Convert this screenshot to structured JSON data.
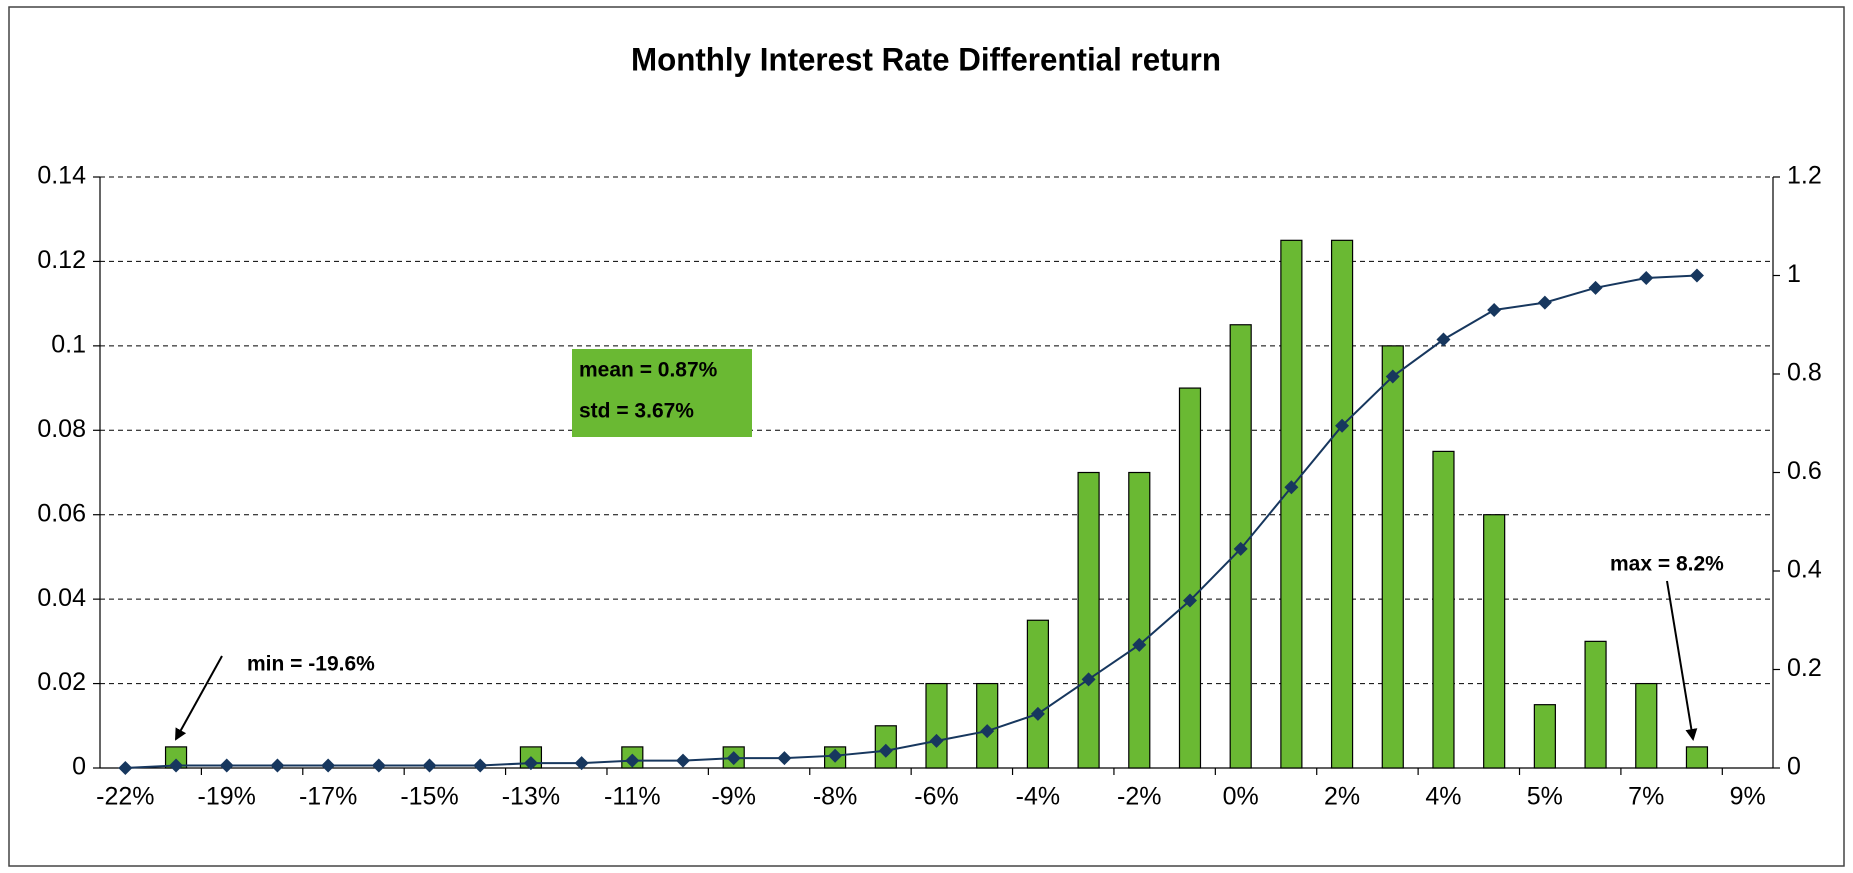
{
  "chart_data": {
    "type": "bar-line",
    "title": "Monthly Interest Rate Differential return",
    "categories": [
      "-22%",
      null,
      "-19%",
      null,
      "-17%",
      null,
      "-15%",
      null,
      "-13%",
      null,
      "-11%",
      null,
      "-9%",
      null,
      "-8%",
      null,
      "-6%",
      null,
      "-4%",
      null,
      "-2%",
      null,
      "0%",
      null,
      "2%",
      null,
      "4%",
      null,
      "5%",
      null,
      "7%",
      null,
      "9%"
    ],
    "series": [
      {
        "type": "bar",
        "color": "#6ab933",
        "values": [
          0,
          0.005,
          0,
          0,
          0,
          0,
          0,
          0,
          0.005,
          0,
          0.005,
          0,
          0.005,
          0,
          0.005,
          0.01,
          0.02,
          0.02,
          0.035,
          0.07,
          0.07,
          0.09,
          0.105,
          0.125,
          0.125,
          0.1,
          0.075,
          0.06,
          0.015,
          0.03,
          0.02,
          0.005,
          null
        ]
      },
      {
        "type": "line",
        "axis": "y2",
        "color": "#17375e",
        "values": [
          0,
          0.005,
          0.005,
          0.005,
          0.005,
          0.005,
          0.005,
          0.005,
          0.01,
          0.01,
          0.015,
          0.015,
          0.02,
          0.02,
          0.025,
          0.035,
          0.055,
          0.075,
          0.11,
          0.18,
          0.25,
          0.34,
          0.445,
          0.57,
          0.695,
          0.795,
          0.87,
          0.93,
          0.945,
          0.975,
          0.995,
          1.0,
          null
        ]
      }
    ],
    "ylim": [
      0,
      0.14
    ],
    "yticks": [
      0,
      0.02,
      0.04,
      0.06,
      0.08,
      0.1,
      0.12,
      0.14
    ],
    "y2lim": [
      0,
      1.2
    ],
    "y2ticks": [
      0,
      0.2,
      0.4,
      0.6,
      0.8,
      1,
      1.2
    ],
    "grid": true,
    "annotations": {
      "min": "min = -19.6%",
      "max": "max = 8.2%",
      "mean": "mean = 0.87%",
      "std": "std = 3.67%"
    }
  }
}
